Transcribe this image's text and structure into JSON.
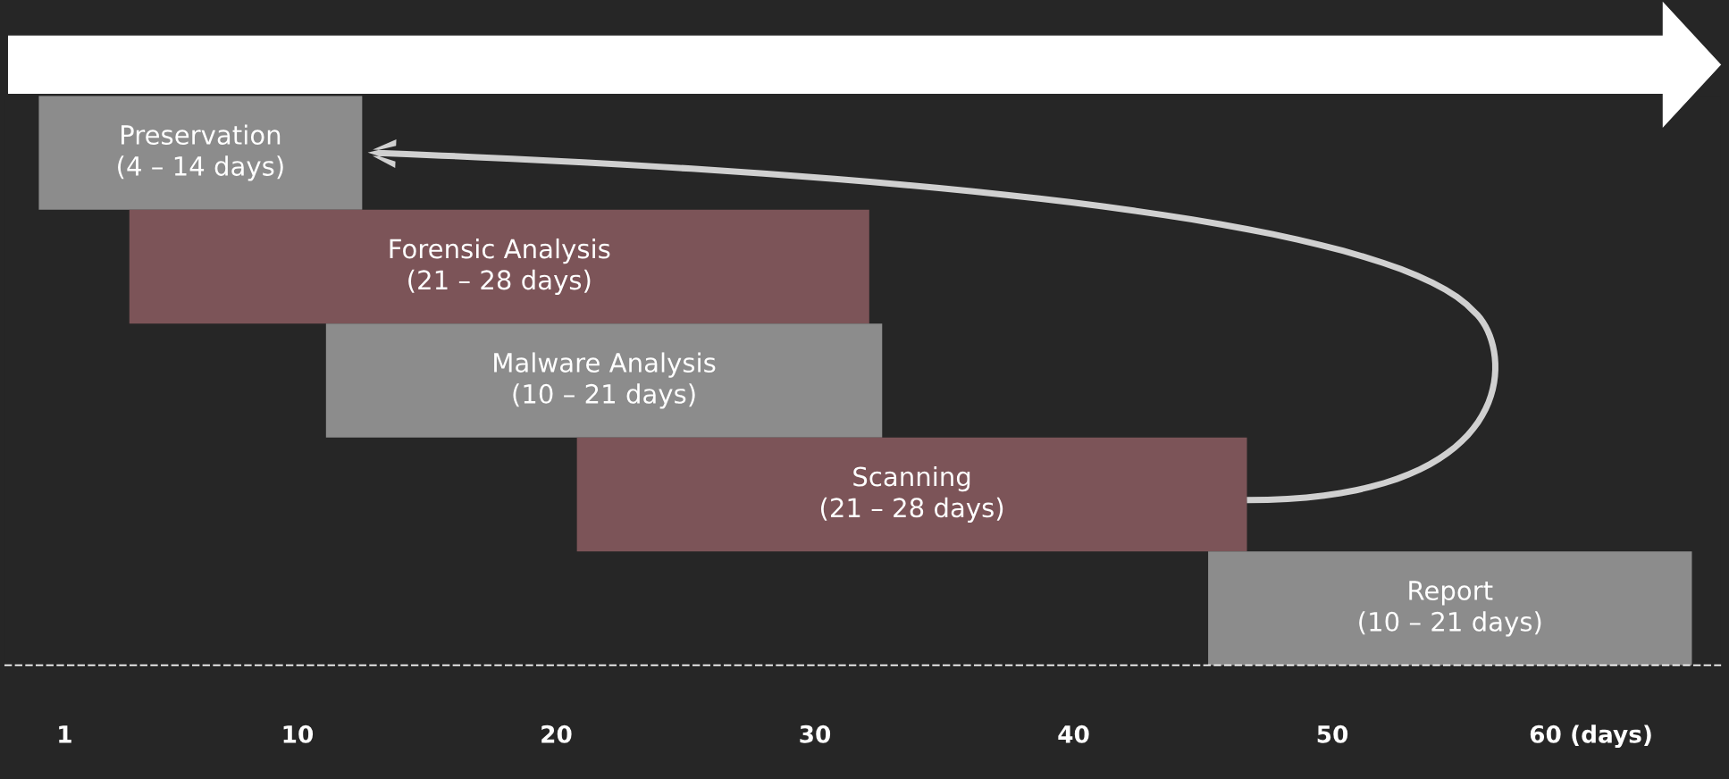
{
  "chart_data": {
    "type": "bar",
    "orientation": "horizontal",
    "categories": [
      "Preservation\n(4 – 14 days)",
      "Forensic Analysis\n(21 – 28 days)",
      "Malware Analysis\n(10 – 21 days)",
      "Scanning\n(21 – 28 days)",
      "Report\n(10 – 21 days)"
    ],
    "base": [
      0,
      3.5,
      11.1,
      20.8,
      45.2
    ],
    "values": [
      12.5,
      28.6,
      21.5,
      25.9,
      18.7
    ],
    "colors": [
      "#8c8c8c",
      "#7c5458",
      "#8c8c8c",
      "#7c5458",
      "#8c8c8c"
    ],
    "xlim": [
      -1.3,
      65
    ],
    "xticks": [
      1,
      10,
      20,
      30,
      40,
      50,
      {
        "value": 60,
        "label": "60 (days)"
      }
    ]
  }
}
